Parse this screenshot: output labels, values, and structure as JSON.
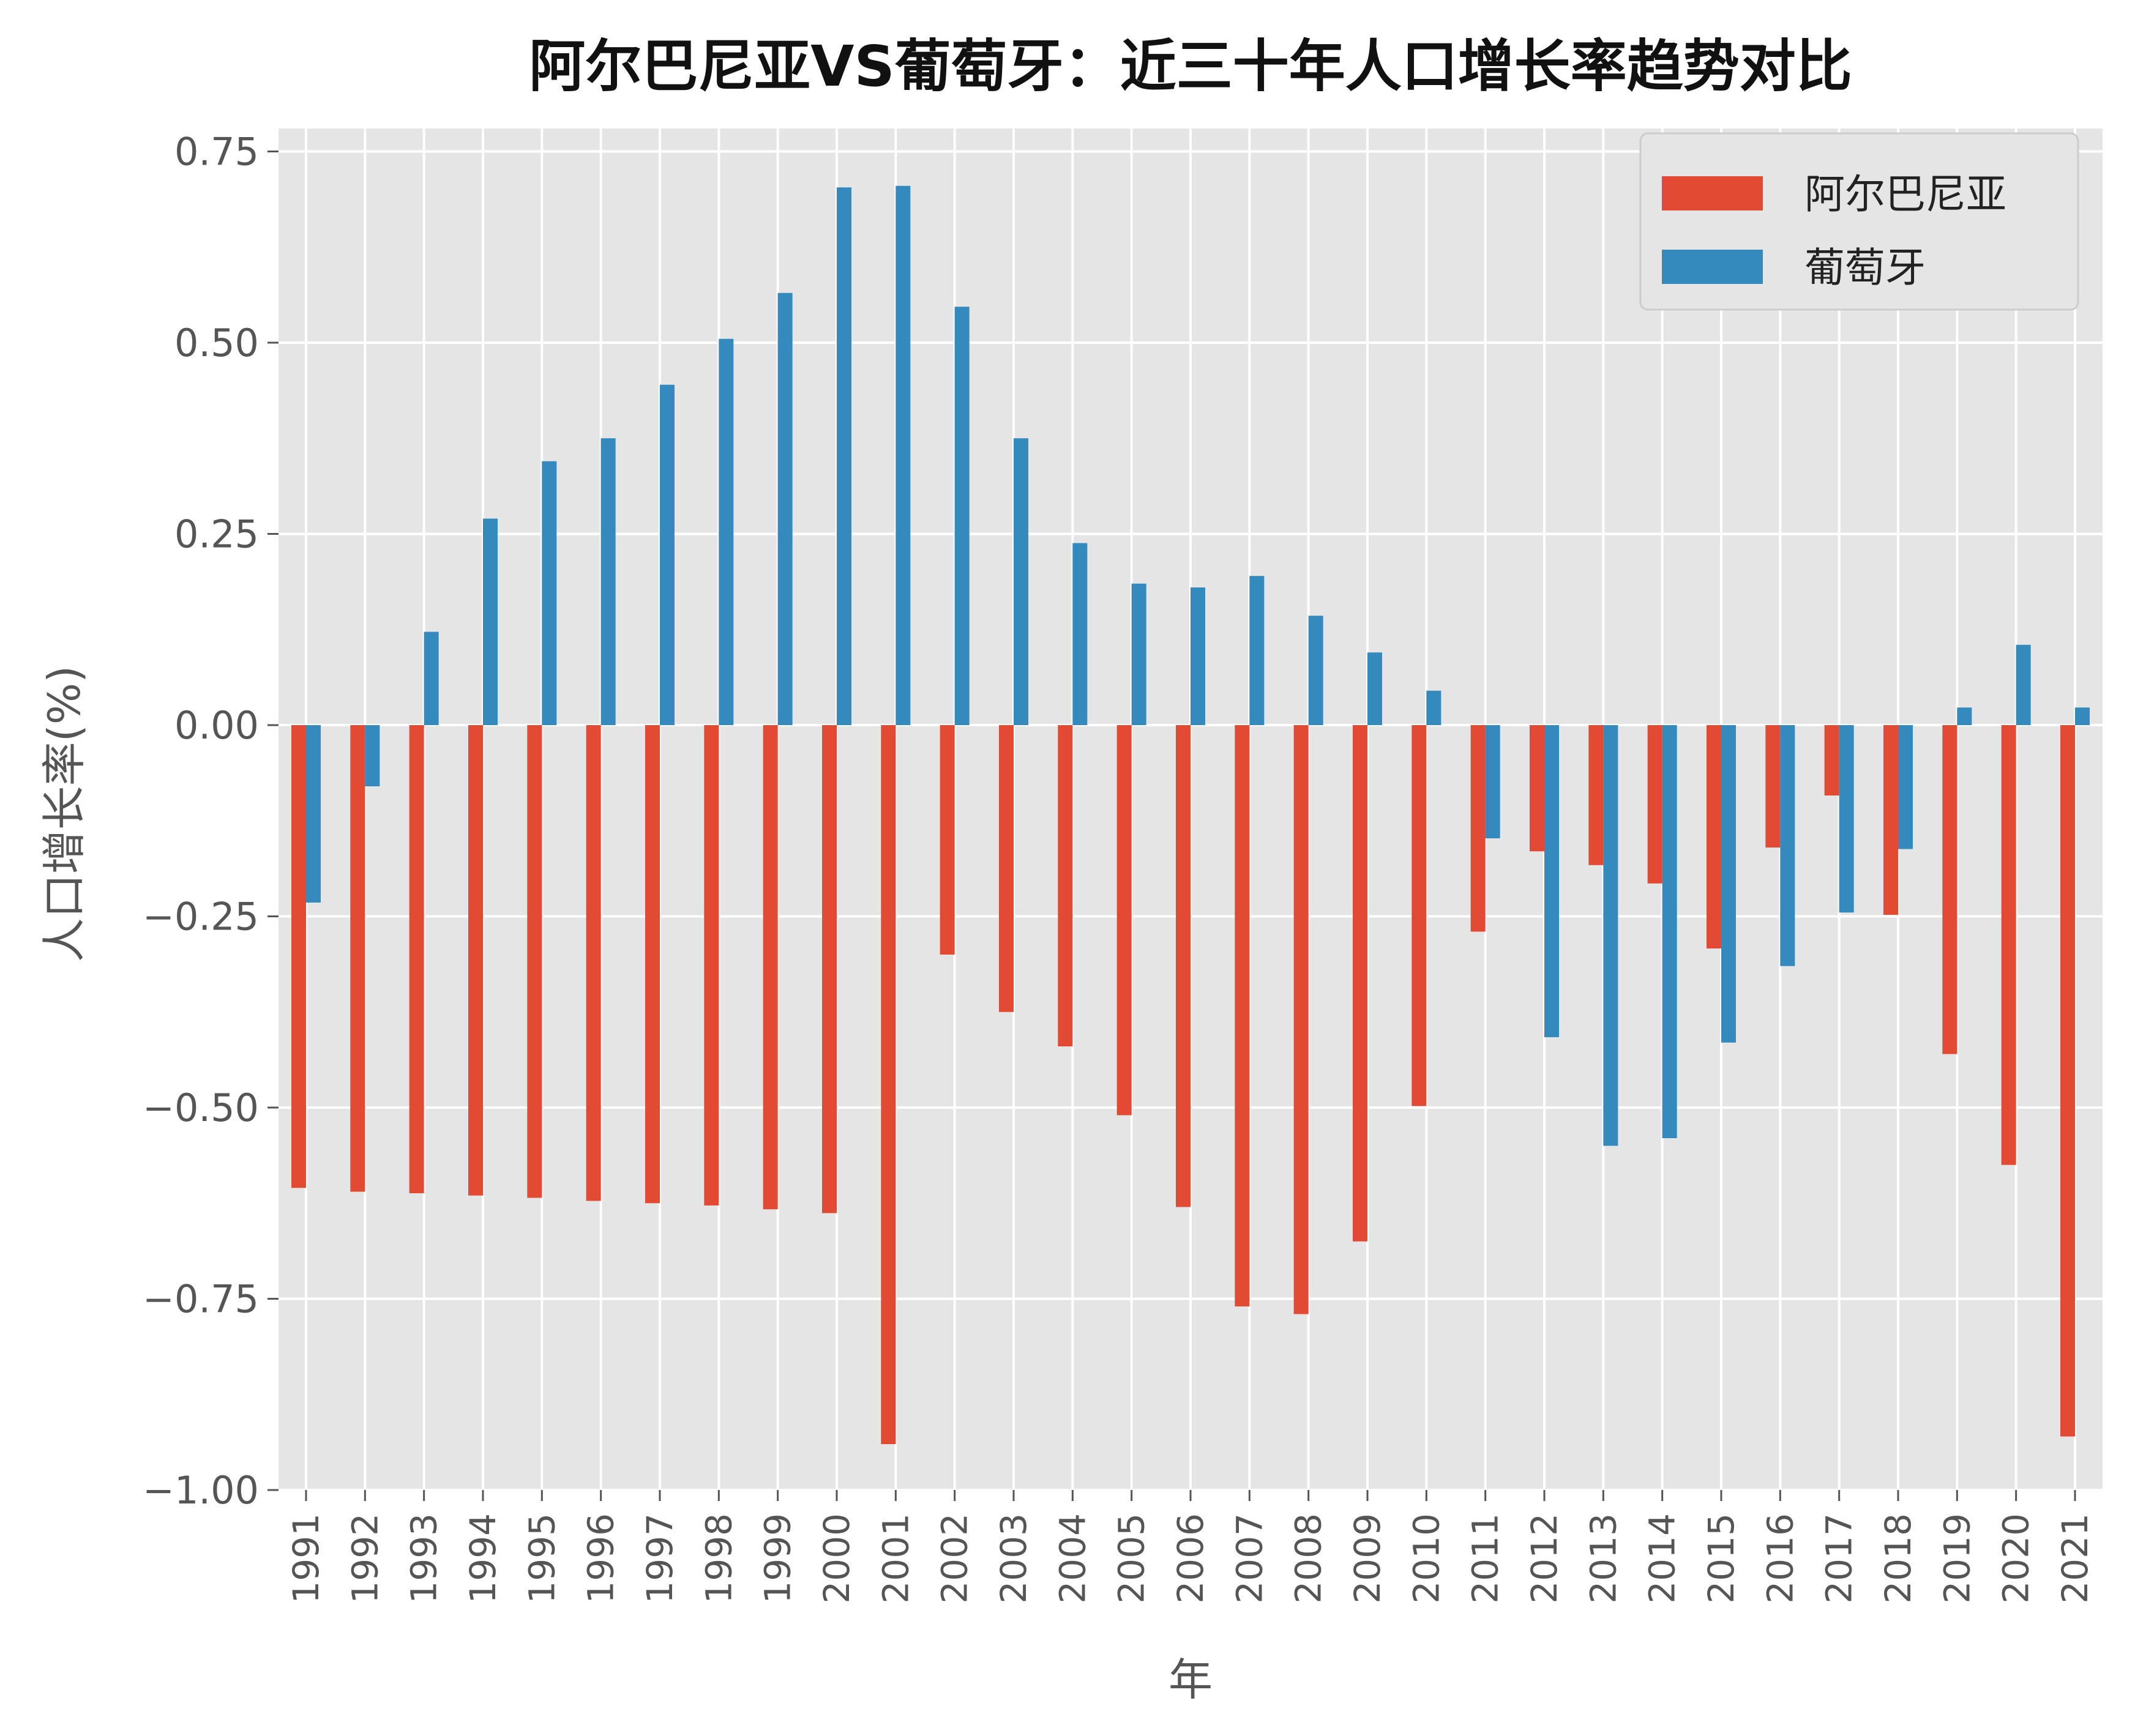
{
  "chart_data": {
    "type": "bar",
    "title": "阿尔巴尼亚VS葡萄牙：近三十年人口增长率趋势对比",
    "xlabel": "年",
    "ylabel": "人口增长率(%)",
    "ylim": [
      -1.0,
      0.78
    ],
    "yticks": [
      "0.75",
      "0.50",
      "0.25",
      "0.00",
      "−0.25",
      "−0.50",
      "−0.75",
      "−1.00"
    ],
    "ytick_values": [
      0.75,
      0.5,
      0.25,
      0.0,
      -0.25,
      -0.5,
      -0.75,
      -1.0
    ],
    "grid": true,
    "legend_position": "top-right",
    "categories": [
      "1991",
      "1992",
      "1993",
      "1994",
      "1995",
      "1996",
      "1997",
      "1998",
      "1999",
      "2000",
      "2001",
      "2002",
      "2003",
      "2004",
      "2005",
      "2006",
      "2007",
      "2008",
      "2009",
      "2010",
      "2011",
      "2012",
      "2013",
      "2014",
      "2015",
      "2016",
      "2017",
      "2018",
      "2019",
      "2020",
      "2021"
    ],
    "series": [
      {
        "name": "阿尔巴尼亚",
        "color": "#E24A33",
        "values": [
          -0.605,
          -0.61,
          -0.612,
          -0.615,
          -0.618,
          -0.622,
          -0.625,
          -0.628,
          -0.633,
          -0.638,
          -0.94,
          -0.3,
          -0.375,
          -0.42,
          -0.51,
          -0.63,
          -0.76,
          -0.77,
          -0.675,
          -0.498,
          -0.27,
          -0.165,
          -0.183,
          -0.207,
          -0.292,
          -0.16,
          -0.092,
          -0.248,
          -0.43,
          -0.575,
          -0.93
        ]
      },
      {
        "name": "葡萄牙",
        "color": "#348ABD",
        "values": [
          -0.232,
          -0.08,
          0.122,
          0.27,
          0.345,
          0.375,
          0.445,
          0.505,
          0.565,
          0.703,
          0.705,
          0.547,
          0.375,
          0.238,
          0.185,
          0.18,
          0.195,
          0.143,
          0.095,
          0.045,
          -0.148,
          -0.408,
          -0.55,
          -0.54,
          -0.415,
          -0.315,
          -0.245,
          -0.162,
          0.023,
          0.105,
          0.023
        ]
      }
    ]
  }
}
